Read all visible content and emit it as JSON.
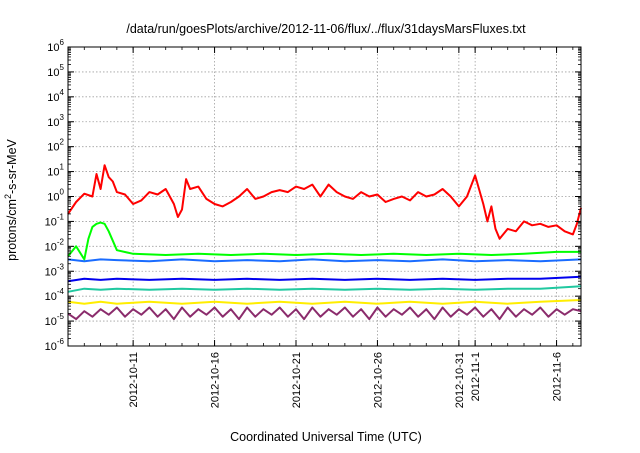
{
  "chart_data": {
    "type": "line",
    "title": "/data/run/goesPlots/archive/2012-11-06/flux/../flux/31daysMarsFluxes.txt",
    "xlabel": "Coordinated Universal Time (UTC)",
    "ylabel_parts": {
      "before": "protons/cm",
      "sup": "2",
      "after": "-s-sr-MeV"
    },
    "x_scale": "date",
    "xlim": [
      "2012-10-07",
      "2012-11-07T12:00"
    ],
    "x_ticks": [
      {
        "date": "2012-10-11",
        "label": "2012-10-11"
      },
      {
        "date": "2012-10-16",
        "label": "2012-10-16"
      },
      {
        "date": "2012-10-21",
        "label": "2012-10-21"
      },
      {
        "date": "2012-10-26",
        "label": "2012-10-26"
      },
      {
        "date": "2012-10-31",
        "label": "2012-10-31"
      },
      {
        "date": "2012-11-01",
        "label": "2012-11-1"
      },
      {
        "date": "2012-11-06",
        "label": "2012-11-6"
      }
    ],
    "y_scale": "log",
    "ylim": [
      1e-06,
      1000000.0
    ],
    "y_ticks": [
      {
        "value": 1e-06,
        "base": "10",
        "exp": "-6"
      },
      {
        "value": 1e-05,
        "base": "10",
        "exp": "-5"
      },
      {
        "value": 0.0001,
        "base": "10",
        "exp": "-4"
      },
      {
        "value": 0.001,
        "base": "10",
        "exp": "-3"
      },
      {
        "value": 0.01,
        "base": "10",
        "exp": "-2"
      },
      {
        "value": 0.1,
        "base": "10",
        "exp": "-1"
      },
      {
        "value": 1,
        "base": "10",
        "exp": "0"
      },
      {
        "value": 10,
        "base": "10",
        "exp": "1"
      },
      {
        "value": 100,
        "base": "10",
        "exp": "2"
      },
      {
        "value": 1000,
        "base": "10",
        "exp": "3"
      },
      {
        "value": 10000,
        "base": "10",
        "exp": "4"
      },
      {
        "value": 100000,
        "base": "10",
        "exp": "5"
      },
      {
        "value": 1000000,
        "base": "10",
        "exp": "6"
      }
    ],
    "grid": true,
    "series": [
      {
        "color": "#ff0000",
        "points": [
          [
            "2012-10-07",
            0.2
          ],
          [
            "2012-10-07T12:00",
            0.6
          ],
          [
            "2012-10-08",
            1.3
          ],
          [
            "2012-10-08T12:00",
            1.0
          ],
          [
            "2012-10-08T18:00",
            8
          ],
          [
            "2012-10-09",
            2
          ],
          [
            "2012-10-09T06:00",
            18
          ],
          [
            "2012-10-09T12:00",
            6
          ],
          [
            "2012-10-09T18:00",
            4
          ],
          [
            "2012-10-10",
            1.5
          ],
          [
            "2012-10-10T12:00",
            1.2
          ],
          [
            "2012-10-11",
            0.5
          ],
          [
            "2012-10-11T12:00",
            0.7
          ],
          [
            "2012-10-12",
            1.5
          ],
          [
            "2012-10-12T12:00",
            1.2
          ],
          [
            "2012-10-13",
            2
          ],
          [
            "2012-10-13T12:00",
            0.5
          ],
          [
            "2012-10-13T18:00",
            0.15
          ],
          [
            "2012-10-14",
            0.3
          ],
          [
            "2012-10-14T06:00",
            5
          ],
          [
            "2012-10-14T12:00",
            2
          ],
          [
            "2012-10-15",
            2.5
          ],
          [
            "2012-10-15T12:00",
            0.8
          ],
          [
            "2012-10-16",
            0.5
          ],
          [
            "2012-10-16T12:00",
            0.4
          ],
          [
            "2012-10-17",
            0.6
          ],
          [
            "2012-10-17T12:00",
            1.0
          ],
          [
            "2012-10-18",
            2.0
          ],
          [
            "2012-10-18T12:00",
            0.8
          ],
          [
            "2012-10-19",
            1.0
          ],
          [
            "2012-10-19T12:00",
            1.5
          ],
          [
            "2012-10-20",
            1.8
          ],
          [
            "2012-10-20T12:00",
            1.5
          ],
          [
            "2012-10-21",
            2.5
          ],
          [
            "2012-10-21T12:00",
            2.0
          ],
          [
            "2012-10-22",
            3.0
          ],
          [
            "2012-10-22T12:00",
            1.0
          ],
          [
            "2012-10-23",
            3.0
          ],
          [
            "2012-10-23T12:00",
            1.5
          ],
          [
            "2012-10-24",
            1.0
          ],
          [
            "2012-10-24T12:00",
            0.8
          ],
          [
            "2012-10-25",
            1.5
          ],
          [
            "2012-10-25T12:00",
            1.0
          ],
          [
            "2012-10-26",
            1.2
          ],
          [
            "2012-10-26T12:00",
            0.6
          ],
          [
            "2012-10-27",
            0.8
          ],
          [
            "2012-10-27T12:00",
            1.0
          ],
          [
            "2012-10-28",
            0.7
          ],
          [
            "2012-10-28T12:00",
            1.5
          ],
          [
            "2012-10-29",
            1.0
          ],
          [
            "2012-10-29T12:00",
            1.2
          ],
          [
            "2012-10-30",
            2.0
          ],
          [
            "2012-10-30T12:00",
            1.0
          ],
          [
            "2012-10-31",
            0.4
          ],
          [
            "2012-10-31T12:00",
            1.0
          ],
          [
            "2012-11-01",
            7
          ],
          [
            "2012-11-01T12:00",
            0.5
          ],
          [
            "2012-11-01T18:00",
            0.1
          ],
          [
            "2012-11-02",
            0.4
          ],
          [
            "2012-11-02T06:00",
            0.05
          ],
          [
            "2012-11-02T12:00",
            0.02
          ],
          [
            "2012-11-03",
            0.05
          ],
          [
            "2012-11-03T12:00",
            0.04
          ],
          [
            "2012-11-04",
            0.1
          ],
          [
            "2012-11-04T12:00",
            0.07
          ],
          [
            "2012-11-05",
            0.08
          ],
          [
            "2012-11-05T12:00",
            0.06
          ],
          [
            "2012-11-06",
            0.07
          ],
          [
            "2012-11-06T12:00",
            0.04
          ],
          [
            "2012-11-07",
            0.03
          ],
          [
            "2012-11-07T06:00",
            0.08
          ],
          [
            "2012-11-07T12:00",
            0.35
          ]
        ]
      },
      {
        "color": "#00ff00",
        "points": [
          [
            "2012-10-07",
            0.004
          ],
          [
            "2012-10-07T12:00",
            0.01
          ],
          [
            "2012-10-08",
            0.003
          ],
          [
            "2012-10-08T06:00",
            0.02
          ],
          [
            "2012-10-08T12:00",
            0.06
          ],
          [
            "2012-10-08T18:00",
            0.08
          ],
          [
            "2012-10-09",
            0.09
          ],
          [
            "2012-10-09T06:00",
            0.08
          ],
          [
            "2012-10-09T12:00",
            0.04
          ],
          [
            "2012-10-10",
            0.007
          ],
          [
            "2012-10-11",
            0.005
          ],
          [
            "2012-10-13",
            0.0045
          ],
          [
            "2012-10-15",
            0.005
          ],
          [
            "2012-10-17",
            0.0045
          ],
          [
            "2012-10-19",
            0.005
          ],
          [
            "2012-10-21",
            0.0045
          ],
          [
            "2012-10-23",
            0.005
          ],
          [
            "2012-10-25",
            0.0045
          ],
          [
            "2012-10-27",
            0.005
          ],
          [
            "2012-10-29",
            0.0045
          ],
          [
            "2012-10-31",
            0.005
          ],
          [
            "2012-11-02",
            0.0045
          ],
          [
            "2012-11-04",
            0.005
          ],
          [
            "2012-11-06",
            0.006
          ],
          [
            "2012-11-07T12:00",
            0.006
          ]
        ]
      },
      {
        "color": "#1a6cff",
        "points": [
          [
            "2012-10-07",
            0.003
          ],
          [
            "2012-10-08",
            0.0025
          ],
          [
            "2012-10-09",
            0.003
          ],
          [
            "2012-10-10",
            0.0028
          ],
          [
            "2012-10-12",
            0.0025
          ],
          [
            "2012-10-14",
            0.003
          ],
          [
            "2012-10-16",
            0.0025
          ],
          [
            "2012-10-18",
            0.0028
          ],
          [
            "2012-10-20",
            0.0025
          ],
          [
            "2012-10-22",
            0.003
          ],
          [
            "2012-10-24",
            0.0025
          ],
          [
            "2012-10-26",
            0.0028
          ],
          [
            "2012-10-28",
            0.0025
          ],
          [
            "2012-10-30",
            0.003
          ],
          [
            "2012-11-01",
            0.0025
          ],
          [
            "2012-11-03",
            0.0028
          ],
          [
            "2012-11-05",
            0.0025
          ],
          [
            "2012-11-07T12:00",
            0.003
          ]
        ]
      },
      {
        "color": "#0000ee",
        "points": [
          [
            "2012-10-07",
            0.0004
          ],
          [
            "2012-10-08",
            0.0005
          ],
          [
            "2012-10-09",
            0.00045
          ],
          [
            "2012-10-10",
            0.0005
          ],
          [
            "2012-10-12",
            0.00045
          ],
          [
            "2012-10-14",
            0.0005
          ],
          [
            "2012-10-16",
            0.00045
          ],
          [
            "2012-10-18",
            0.0005
          ],
          [
            "2012-10-20",
            0.00045
          ],
          [
            "2012-10-22",
            0.0005
          ],
          [
            "2012-10-24",
            0.00045
          ],
          [
            "2012-10-26",
            0.0005
          ],
          [
            "2012-10-28",
            0.00045
          ],
          [
            "2012-10-30",
            0.0005
          ],
          [
            "2012-11-01",
            0.00045
          ],
          [
            "2012-11-03",
            0.0005
          ],
          [
            "2012-11-05",
            0.0005
          ],
          [
            "2012-11-07T12:00",
            0.0006
          ]
        ]
      },
      {
        "color": "#20c8a0",
        "points": [
          [
            "2012-10-07",
            0.00015
          ],
          [
            "2012-10-08",
            0.0002
          ],
          [
            "2012-10-09",
            0.00018
          ],
          [
            "2012-10-10",
            0.0002
          ],
          [
            "2012-10-12",
            0.00018
          ],
          [
            "2012-10-14",
            0.0002
          ],
          [
            "2012-10-16",
            0.00018
          ],
          [
            "2012-10-18",
            0.0002
          ],
          [
            "2012-10-20",
            0.00018
          ],
          [
            "2012-10-22",
            0.0002
          ],
          [
            "2012-10-24",
            0.00018
          ],
          [
            "2012-10-26",
            0.0002
          ],
          [
            "2012-10-28",
            0.00018
          ],
          [
            "2012-10-30",
            0.0002
          ],
          [
            "2012-11-01",
            0.00018
          ],
          [
            "2012-11-03",
            0.0002
          ],
          [
            "2012-11-05",
            0.0002
          ],
          [
            "2012-11-07T12:00",
            0.00025
          ]
        ]
      },
      {
        "color": "#ffee00",
        "points": [
          [
            "2012-10-07",
            6e-05
          ],
          [
            "2012-10-08",
            5e-05
          ],
          [
            "2012-10-09",
            6e-05
          ],
          [
            "2012-10-10",
            5e-05
          ],
          [
            "2012-10-12",
            6e-05
          ],
          [
            "2012-10-14",
            5e-05
          ],
          [
            "2012-10-16",
            6e-05
          ],
          [
            "2012-10-18",
            5e-05
          ],
          [
            "2012-10-20",
            6e-05
          ],
          [
            "2012-10-22",
            5e-05
          ],
          [
            "2012-10-24",
            6e-05
          ],
          [
            "2012-10-26",
            5e-05
          ],
          [
            "2012-10-28",
            6e-05
          ],
          [
            "2012-10-30",
            5e-05
          ],
          [
            "2012-11-01",
            6e-05
          ],
          [
            "2012-11-03",
            5e-05
          ],
          [
            "2012-11-05",
            6e-05
          ],
          [
            "2012-11-07T12:00",
            7e-05
          ]
        ]
      },
      {
        "color": "#8b2c6c",
        "points": [
          [
            "2012-10-07",
            2e-05
          ],
          [
            "2012-10-07T12:00",
            1.2e-05
          ],
          [
            "2012-10-08",
            2.5e-05
          ],
          [
            "2012-10-08T12:00",
            1.5e-05
          ],
          [
            "2012-10-09",
            3e-05
          ],
          [
            "2012-10-09T12:00",
            1.8e-05
          ],
          [
            "2012-10-10",
            3.5e-05
          ],
          [
            "2012-10-10T12:00",
            1.5e-05
          ],
          [
            "2012-10-11",
            3e-05
          ],
          [
            "2012-10-11T12:00",
            1.8e-05
          ],
          [
            "2012-10-12",
            3.5e-05
          ],
          [
            "2012-10-12T12:00",
            1.5e-05
          ],
          [
            "2012-10-13",
            3e-05
          ],
          [
            "2012-10-13T12:00",
            1.2e-05
          ],
          [
            "2012-10-14",
            3.5e-05
          ],
          [
            "2012-10-14T12:00",
            1.5e-05
          ],
          [
            "2012-10-15",
            3e-05
          ],
          [
            "2012-10-15T12:00",
            1.8e-05
          ],
          [
            "2012-10-16",
            3.5e-05
          ],
          [
            "2012-10-16T12:00",
            1.5e-05
          ],
          [
            "2012-10-17",
            3e-05
          ],
          [
            "2012-10-17T12:00",
            1.2e-05
          ],
          [
            "2012-10-18",
            3.5e-05
          ],
          [
            "2012-10-18T12:00",
            1.5e-05
          ],
          [
            "2012-10-19",
            3e-05
          ],
          [
            "2012-10-19T12:00",
            1.8e-05
          ],
          [
            "2012-10-20",
            3.5e-05
          ],
          [
            "2012-10-20T12:00",
            1.5e-05
          ],
          [
            "2012-10-21",
            3e-05
          ],
          [
            "2012-10-21T12:00",
            1.2e-05
          ],
          [
            "2012-10-22",
            3.5e-05
          ],
          [
            "2012-10-22T12:00",
            1.5e-05
          ],
          [
            "2012-10-23",
            3e-05
          ],
          [
            "2012-10-23T12:00",
            1.8e-05
          ],
          [
            "2012-10-24",
            3.5e-05
          ],
          [
            "2012-10-24T12:00",
            1.5e-05
          ],
          [
            "2012-10-25",
            3e-05
          ],
          [
            "2012-10-25T12:00",
            1.2e-05
          ],
          [
            "2012-10-26",
            3.5e-05
          ],
          [
            "2012-10-26T12:00",
            1.5e-05
          ],
          [
            "2012-10-27",
            3e-05
          ],
          [
            "2012-10-27T12:00",
            1.8e-05
          ],
          [
            "2012-10-28",
            3.5e-05
          ],
          [
            "2012-10-28T12:00",
            1.5e-05
          ],
          [
            "2012-10-29",
            3e-05
          ],
          [
            "2012-10-29T12:00",
            1.2e-05
          ],
          [
            "2012-10-30",
            3.5e-05
          ],
          [
            "2012-10-30T12:00",
            1.5e-05
          ],
          [
            "2012-10-31",
            3e-05
          ],
          [
            "2012-10-31T12:00",
            1.8e-05
          ],
          [
            "2012-11-01",
            3.5e-05
          ],
          [
            "2012-11-01T12:00",
            1.5e-05
          ],
          [
            "2012-11-02",
            3e-05
          ],
          [
            "2012-11-02T12:00",
            1.2e-05
          ],
          [
            "2012-11-03",
            3.5e-05
          ],
          [
            "2012-11-03T12:00",
            1.5e-05
          ],
          [
            "2012-11-04",
            3e-05
          ],
          [
            "2012-11-04T12:00",
            1.8e-05
          ],
          [
            "2012-11-05",
            3.5e-05
          ],
          [
            "2012-11-05T12:00",
            1.5e-05
          ],
          [
            "2012-11-06",
            3e-05
          ],
          [
            "2012-11-06T12:00",
            1.8e-05
          ],
          [
            "2012-11-07",
            3e-05
          ],
          [
            "2012-11-07T12:00",
            2.5e-05
          ]
        ]
      }
    ]
  }
}
